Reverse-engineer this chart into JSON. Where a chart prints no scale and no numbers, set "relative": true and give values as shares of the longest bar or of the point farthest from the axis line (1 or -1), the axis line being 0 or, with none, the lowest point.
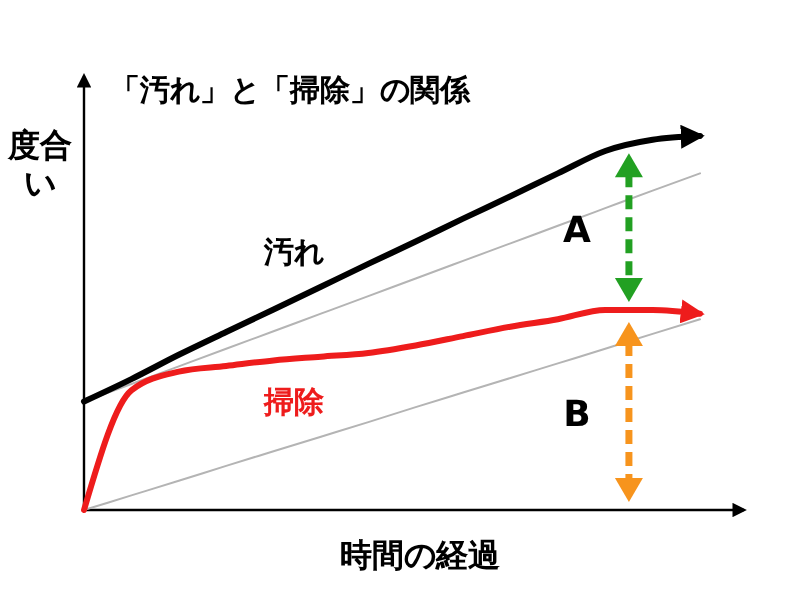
{
  "chart_data": {
    "type": "line",
    "title": "「汚れ」と「掃除」の関係",
    "xlabel": "時間の経過",
    "ylabel": "度合い",
    "relative": true,
    "marker": "none",
    "line_style": "solid",
    "categories": [
      null,
      null,
      null,
      null,
      null,
      null,
      null,
      null,
      null,
      null,
      null,
      null,
      null,
      null
    ],
    "series": [
      {
        "name": "汚れ",
        "color": "#000000",
        "values": [
          0.29,
          0.35,
          0.415,
          0.476,
          0.536,
          0.597,
          0.658,
          0.718,
          0.779,
          0.839,
          0.9,
          0.96,
          0.99,
          1.0
        ]
      },
      {
        "name": "掃除",
        "color": "#ee1c1c",
        "values": [
          0,
          0.32,
          0.37,
          0.385,
          0.4,
          0.41,
          0.42,
          0.44,
          0.465,
          0.49,
          0.51,
          0.535,
          0.535,
          0.525
        ]
      },
      {
        "color": "#b4b4b4",
        "values": [
          0.29,
          0.337,
          0.384,
          0.431,
          0.478,
          0.525,
          0.572,
          0.619,
          0.666,
          0.713,
          0.76,
          0.807,
          0.854,
          0.9
        ]
      },
      {
        "color": "#b4b4b4",
        "values": [
          0,
          0.039,
          0.078,
          0.118,
          0.157,
          0.196,
          0.235,
          0.275,
          0.314,
          0.353,
          0.392,
          0.431,
          0.471,
          0.51
        ]
      }
    ],
    "annotations": [
      "A",
      "B"
    ]
  }
}
